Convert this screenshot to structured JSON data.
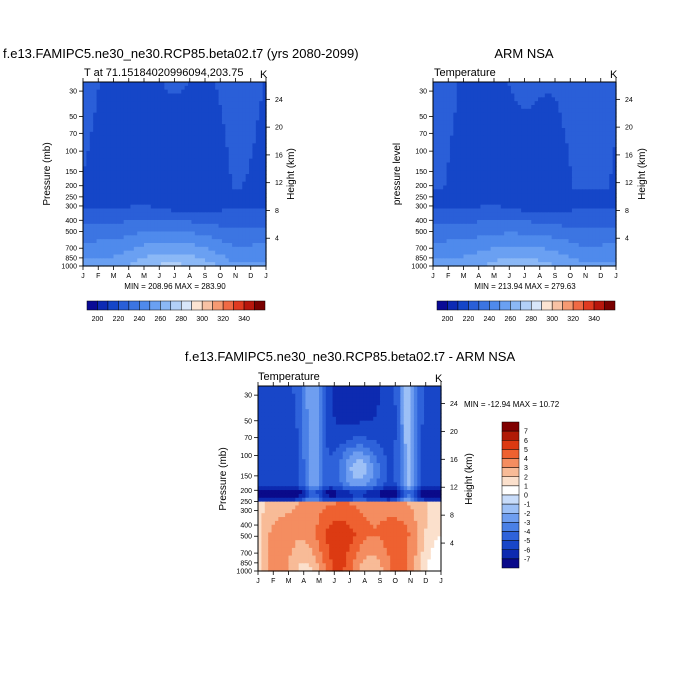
{
  "chart_data": [
    {
      "type": "heatmap",
      "title": "f.e13.FAMIPC5.ne30_ne30.RCP85.beta02.t7 (yrs 2080-2099)",
      "subtitle_left": "T at 71.15184020996094,203.75",
      "subtitle_right": "K",
      "xlabel": "",
      "ylabel_left": "Pressure (mb)",
      "ylabel_right": "Height (km)",
      "x_ticks": [
        "J",
        "F",
        "M",
        "A",
        "M",
        "J",
        "J",
        "A",
        "S",
        "O",
        "N",
        "D",
        "J"
      ],
      "y_ticks_pressure": [
        "30",
        "50",
        "70",
        "100",
        "150",
        "200",
        "250",
        "300",
        "400",
        "500",
        "700",
        "850",
        "1000"
      ],
      "y_ticks_height": [
        "24",
        "20",
        "16",
        "12",
        "8",
        "4"
      ],
      "minmax_text": "MIN = 208.96 MAX = 283.90",
      "colorbar_ticks": [
        "200",
        "220",
        "240",
        "260",
        "280",
        "300",
        "320",
        "340"
      ],
      "levels": [
        190,
        200,
        210,
        220,
        230,
        240,
        250,
        260,
        270,
        280,
        290,
        300,
        310,
        320,
        330,
        340,
        350
      ],
      "min": 208.96,
      "max": 283.9
    },
    {
      "type": "heatmap",
      "title": "ARM NSA",
      "subtitle_left": "Temperature",
      "subtitle_right": "K",
      "xlabel": "",
      "ylabel_left": "pressure level",
      "ylabel_right": "Height (km)",
      "x_ticks": [
        "J",
        "F",
        "M",
        "A",
        "M",
        "J",
        "J",
        "A",
        "S",
        "O",
        "N",
        "D",
        "J"
      ],
      "y_ticks_pressure": [
        "30",
        "50",
        "70",
        "100",
        "150",
        "200",
        "250",
        "300",
        "400",
        "500",
        "700",
        "850",
        "1000"
      ],
      "y_ticks_height": [
        "24",
        "20",
        "16",
        "12",
        "8",
        "4"
      ],
      "minmax_text": "MIN = 213.94 MAX = 279.63",
      "colorbar_ticks": [
        "200",
        "220",
        "240",
        "260",
        "280",
        "300",
        "320",
        "340"
      ],
      "levels": [
        190,
        200,
        210,
        220,
        230,
        240,
        250,
        260,
        270,
        280,
        290,
        300,
        310,
        320,
        330,
        340,
        350
      ],
      "min": 213.94,
      "max": 279.63
    },
    {
      "type": "heatmap",
      "title": "f.e13.FAMIPC5.ne30_ne30.RCP85.beta02.t7 - ARM NSA",
      "subtitle_left": "Temperature",
      "subtitle_right": "K",
      "xlabel": "",
      "ylabel_left": "Pressure (mb)",
      "ylabel_right": "Height (km)",
      "x_ticks": [
        "J",
        "F",
        "M",
        "A",
        "M",
        "J",
        "J",
        "A",
        "S",
        "O",
        "N",
        "D",
        "J"
      ],
      "y_ticks_pressure": [
        "30",
        "50",
        "70",
        "100",
        "150",
        "200",
        "250",
        "300",
        "400",
        "500",
        "700",
        "850",
        "1000"
      ],
      "y_ticks_height": [
        "24",
        "20",
        "16",
        "12",
        "8",
        "4"
      ],
      "minmax_text": "MIN = -12.94 MAX =  10.72",
      "colorbar_ticks": [
        "7",
        "6",
        "5",
        "4",
        "3",
        "2",
        "1",
        "0",
        "-1",
        "-2",
        "-3",
        "-4",
        "-5",
        "-6",
        "-7"
      ],
      "min": -12.94,
      "max": 10.72
    }
  ],
  "palette_temp": [
    "#0a0a96",
    "#0d2ab4",
    "#1546c8",
    "#2a5fd8",
    "#3c75e2",
    "#4f8aec",
    "#6aa0f2",
    "#8bb8f6",
    "#b2d0f8",
    "#d8e6fa",
    "#fbe3d2",
    "#f8c2a4",
    "#f59a72",
    "#ef6a45",
    "#e03a20",
    "#b8160c",
    "#7a0000"
  ],
  "palette_diff": [
    "#0a0a8a",
    "#0d2ab0",
    "#1846c8",
    "#2e62da",
    "#4a80e6",
    "#6f9ef0",
    "#9dc0f6",
    "#c8dcfa",
    "#ffffff",
    "#fbe0cc",
    "#f8bb97",
    "#f48d60",
    "#ee6130",
    "#dc3a12",
    "#b01a06",
    "#800000"
  ]
}
